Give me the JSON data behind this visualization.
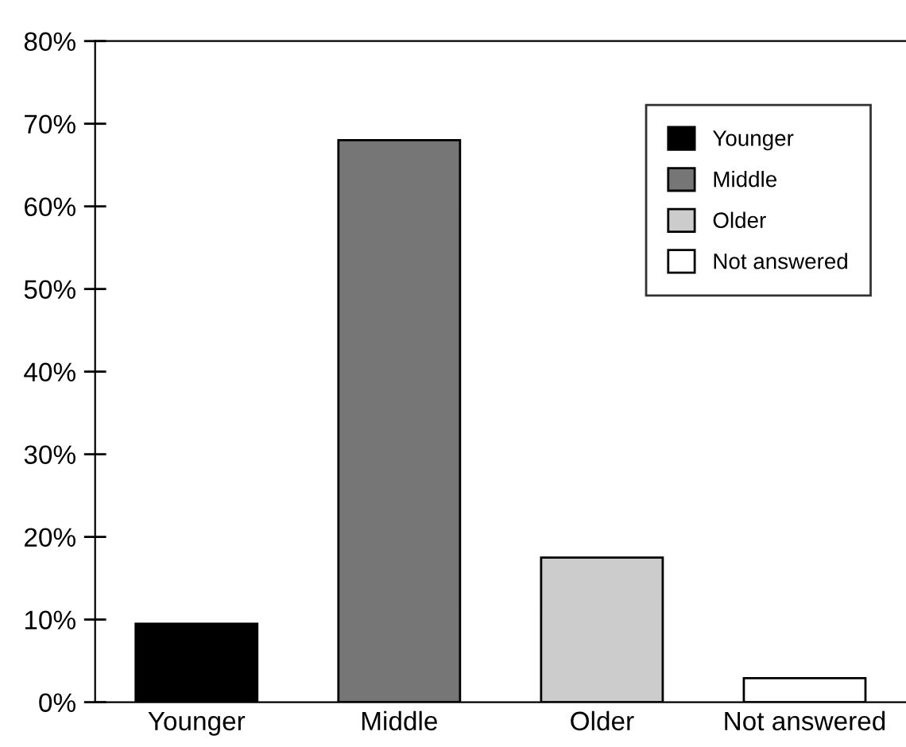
{
  "chart_data": {
    "type": "bar",
    "categories": [
      "Younger",
      "Middle",
      "Older",
      "Not answered"
    ],
    "series": [
      {
        "name": "Younger",
        "color": "#000000",
        "values": [
          9.5,
          null,
          null,
          null
        ]
      },
      {
        "name": "Middle",
        "color": "#767676",
        "values": [
          null,
          68,
          null,
          null
        ]
      },
      {
        "name": "Older",
        "color": "#cccccc",
        "values": [
          null,
          null,
          17.5,
          null
        ]
      },
      {
        "name": "Not answered",
        "color": "#ffffff",
        "values": [
          null,
          null,
          null,
          2.9
        ]
      }
    ],
    "ylim": [
      0,
      80
    ],
    "yticks": [
      {
        "value": 0,
        "label": "0%"
      },
      {
        "value": 10,
        "label": "10%"
      },
      {
        "value": 20,
        "label": "20%"
      },
      {
        "value": 30,
        "label": "30%"
      },
      {
        "value": 40,
        "label": "40%"
      },
      {
        "value": 50,
        "label": "50%"
      },
      {
        "value": 60,
        "label": "60%"
      },
      {
        "value": 70,
        "label": "70%"
      },
      {
        "value": 80,
        "label": "80%"
      }
    ],
    "grid": false,
    "legend": "top right"
  }
}
